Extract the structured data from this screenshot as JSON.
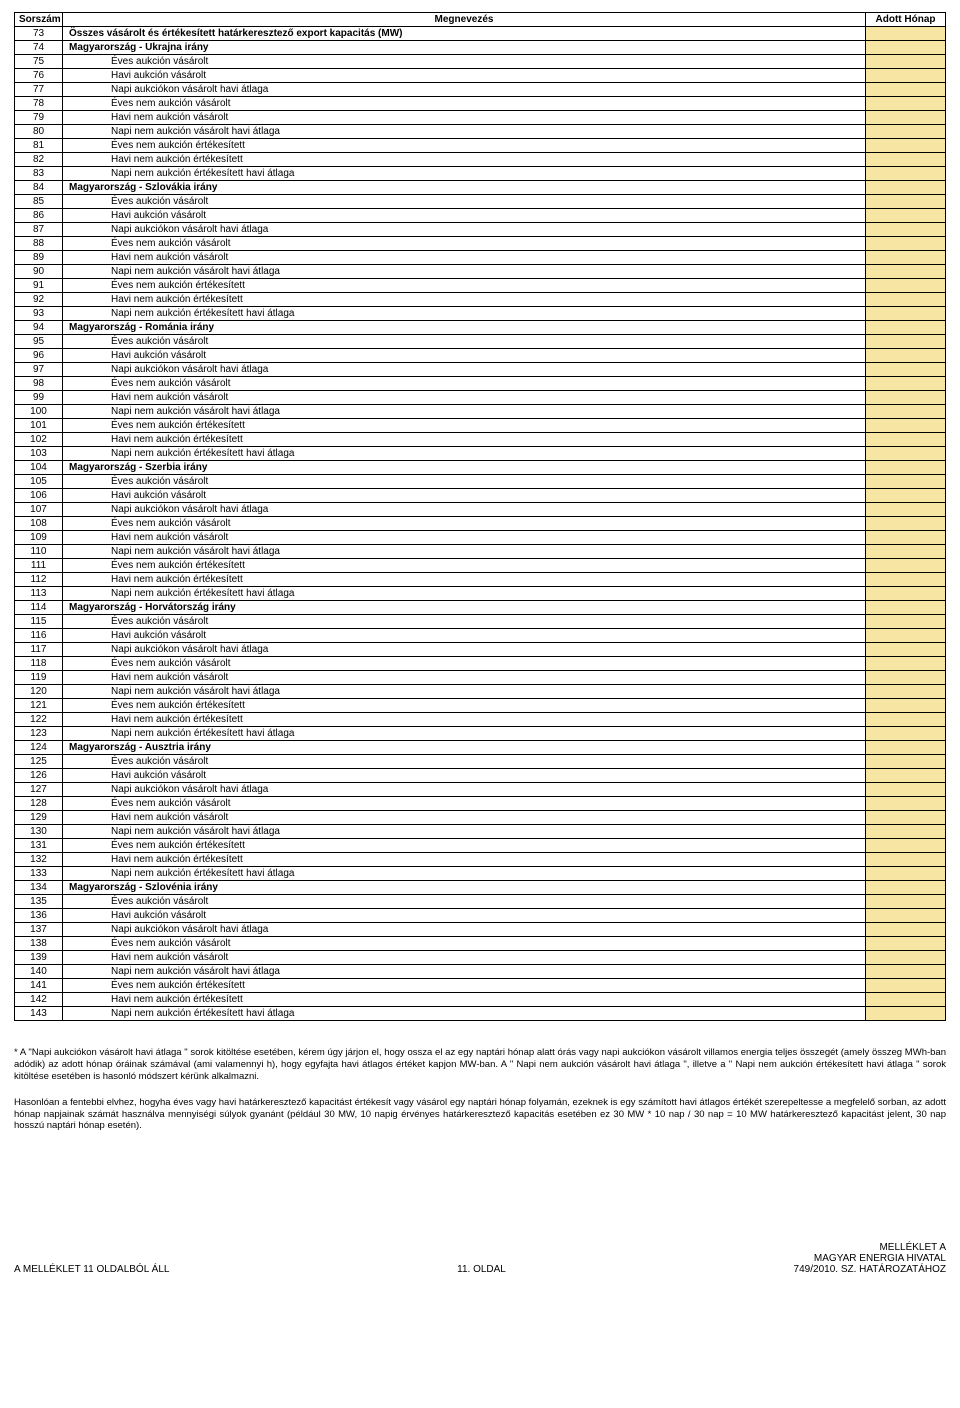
{
  "columns": {
    "num": "Sorszám",
    "name": "Megnevezés",
    "val": "Adott Hónap"
  },
  "first_row": {
    "num": "73",
    "label": "Összes vásárolt és értékesített határkeresztező export kapacitás (MW)"
  },
  "sections": [
    {
      "start": 74,
      "header": "Magyarország - Ukrajna irány"
    },
    {
      "start": 84,
      "header": "Magyarország - Szlovákia irány"
    },
    {
      "start": 94,
      "header": "Magyarország - Románia irány"
    },
    {
      "start": 104,
      "header": "Magyarország - Szerbia irány"
    },
    {
      "start": 114,
      "header": "Magyarország - Horvátország irány"
    },
    {
      "start": 124,
      "header": "Magyarország - Ausztria irány"
    },
    {
      "start": 134,
      "header": "Magyarország - Szlovénia irány"
    }
  ],
  "item_labels": [
    "Éves aukción vásárolt",
    "Havi aukción vásárolt",
    "Napi aukciókon vásárolt havi átlaga",
    "Éves nem aukción vásárolt",
    "Havi nem aukción vásárolt",
    "Napi nem aukción vásárolt havi átlaga",
    "Éves nem aukción értékesített",
    "Havi nem aukción értékesített",
    "Napi nem aukción értékesített havi átlaga"
  ],
  "footnote1": "* A \"Napi aukciókon vásárolt havi átlaga \" sorok kitöltése esetében, kérem úgy járjon el, hogy ossza el az egy naptári hónap alatt órás vagy napi aukciókon vásárolt villamos energia teljes összegét (amely összeg MWh-ban adódik) az adott hónap óráinak számával (ami valamennyi h), hogy egyfajta havi átlagos értéket kapjon MW-ban. A \" Napi nem aukción vásárolt havi átlaga \", illetve a \" Napi nem aukción értékesített havi átlaga \" sorok kitöltése esetében is hasonló módszert kérünk alkalmazni.",
  "footnote2": "Hasonlóan a fentebbi elvhez, hogyha éves vagy havi határkeresztező kapacitást értékesít vagy vásárol egy naptári hónap folyamán, ezeknek is egy számított havi átlagos értékét szerepeltesse a megfelelő sorban, az adott hónap napjainak számát használva mennyiségi súlyok gyanánt (például 30 MW, 10 napig érvényes határkeresztező kapacitás esetében ez 30 MW * 10 nap / 30 nap = 10 MW határkeresztező kapacitást jelent, 30 nap hosszú naptári hónap esetén).",
  "footer": {
    "left": "A MELLÉKLET 11 OLDALBÓL ÁLL",
    "center": "11. OLDAL",
    "right1": "MELLÉKLET A",
    "right2": "MAGYAR ENERGIA HIVATAL",
    "right3": "749/2010. SZ. HATÁROZATÁHOZ"
  },
  "colors": {
    "value_bg": "#f7e6a3",
    "border": "#000000",
    "text": "#000000",
    "page_bg": "#ffffff"
  }
}
